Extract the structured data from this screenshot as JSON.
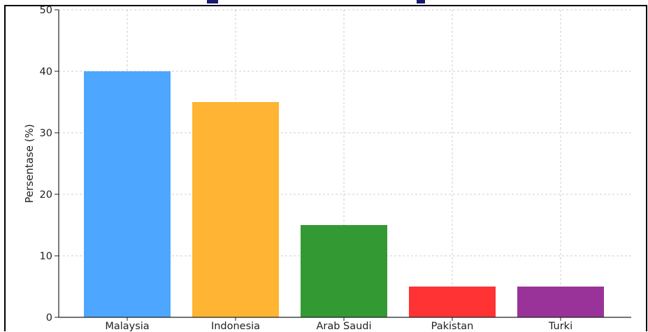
{
  "chart_data": {
    "type": "bar",
    "title": "",
    "xlabel": "",
    "ylabel": "Persentase (%)",
    "categories": [
      "Malaysia",
      "Indonesia",
      "Arab Saudi",
      "Pakistan",
      "Turki"
    ],
    "values": [
      40,
      35,
      15,
      5,
      5
    ],
    "colors": [
      "#4da6ff",
      "#ffb533",
      "#339933",
      "#ff3333",
      "#993399"
    ],
    "ylim": [
      0,
      50
    ],
    "yticks": [
      0,
      10,
      20,
      30,
      40,
      50
    ],
    "grid": true,
    "legend": "none"
  }
}
